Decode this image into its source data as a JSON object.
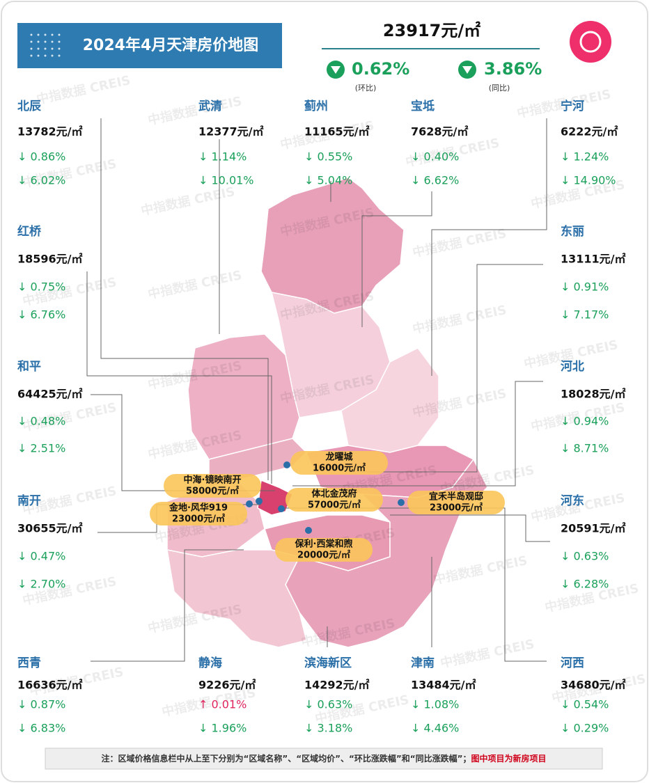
{
  "header": {
    "title": "2024年4月天津房价地图",
    "average_price": "23917元/㎡",
    "mom": {
      "value": "0.62%",
      "label": "(环比)"
    },
    "yoy": {
      "value": "3.86%",
      "label": "(同比)"
    }
  },
  "watermark": "中指数据 CREIS",
  "districts": [
    {
      "name": "北辰",
      "price": "13782元/㎡",
      "mom": "↓ 0.86%",
      "yoy": "↓ 6.02%"
    },
    {
      "name": "武清",
      "price": "12377元/㎡",
      "mom": "↓ 1.14%",
      "yoy": "↓ 10.01%"
    },
    {
      "name": "蓟州",
      "price": "11165元/㎡",
      "mom": "↓ 0.55%",
      "yoy": "↓ 5.04%"
    },
    {
      "name": "宝坻",
      "price": "7628元/㎡",
      "mom": "↓ 0.40%",
      "yoy": "↓ 6.62%"
    },
    {
      "name": "宁河",
      "price": "6222元/㎡",
      "mom": "↓ 1.24%",
      "yoy": "↓ 14.90%"
    },
    {
      "name": "红桥",
      "price": "18596元/㎡",
      "mom": "↓ 0.75%",
      "yoy": "↓ 6.76%"
    },
    {
      "name": "东丽",
      "price": "13111元/㎡",
      "mom": "↓ 0.91%",
      "yoy": "↓ 7.17%"
    },
    {
      "name": "和平",
      "price": "64425元/㎡",
      "mom": "↓ 0.48%",
      "yoy": "↓ 2.51%"
    },
    {
      "name": "河北",
      "price": "18028元/㎡",
      "mom": "↓ 0.94%",
      "yoy": "↓ 8.71%"
    },
    {
      "name": "南开",
      "price": "30655元/㎡",
      "mom": "↓ 0.47%",
      "yoy": "↓ 2.70%"
    },
    {
      "name": "河东",
      "price": "20591元/㎡",
      "mom": "↓ 0.63%",
      "yoy": "↓ 6.28%"
    },
    {
      "name": "西青",
      "price": "16636元/㎡",
      "mom": "↓ 0.87%",
      "yoy": "↓ 6.83%"
    },
    {
      "name": "静海",
      "price": "9226元/㎡",
      "mom": "↑ 0.01%",
      "yoy": "↓ 1.96%"
    },
    {
      "name": "滨海新区",
      "price": "14292元/㎡",
      "mom": "↓ 0.63%",
      "yoy": "↓ 3.18%"
    },
    {
      "name": "津南",
      "price": "13484元/㎡",
      "mom": "↓ 1.08%",
      "yoy": "↓ 4.46%"
    },
    {
      "name": "河西",
      "price": "34680元/㎡",
      "mom": "↓ 0.54%",
      "yoy": "↓ 0.29%"
    }
  ],
  "projects": [
    {
      "name": "龙曜城",
      "price": "16000元/㎡"
    },
    {
      "name": "中海·镜映南开",
      "price": "58000元/㎡"
    },
    {
      "name": "金地·风华919",
      "price": "23000元/㎡"
    },
    {
      "name": "体北金茂府",
      "price": "57000元/㎡"
    },
    {
      "name": "宜禾半岛观邸",
      "price": "23000元/㎡"
    },
    {
      "name": "保利·西棠和煦",
      "price": "20000元/㎡"
    }
  ],
  "footer": {
    "note": "注：区域价格信息栏中从上至下分别为“区域名称”、“区域均价”、“环比涨跌幅”和“同比涨跌幅”；",
    "highlight": "图中项目为新房项目"
  }
}
